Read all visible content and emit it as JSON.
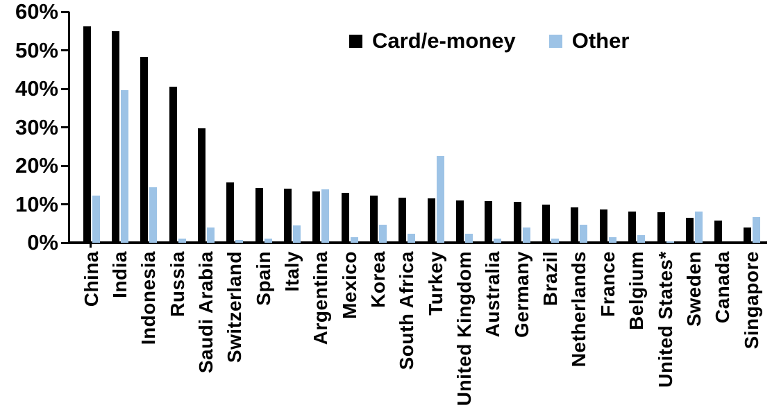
{
  "chart_data": {
    "type": "bar",
    "title": "",
    "xlabel": "",
    "ylabel": "",
    "y_unit": "%",
    "ylim": [
      0,
      60
    ],
    "grid": false,
    "legend_position": "top-center",
    "yticks": [
      {
        "label": "60%",
        "value": 60
      },
      {
        "label": "50%",
        "value": 50
      },
      {
        "label": "40%",
        "value": 40
      },
      {
        "label": "30%",
        "value": 30
      },
      {
        "label": "20%",
        "value": 20
      },
      {
        "label": "10%",
        "value": 10
      },
      {
        "label": "0%",
        "value": 0
      }
    ],
    "categories": [
      "China",
      "India",
      "Indonesia",
      "Russia",
      "Saudi Arabia",
      "Switzerland",
      "Spain",
      "Italy",
      "Argentina",
      "Mexico",
      "Korea",
      "South Africa",
      "Turkey",
      "United Kingdom",
      "Australia",
      "Germany",
      "Brazil",
      "Netherlands",
      "France",
      "Belgium",
      "United States*",
      "Sweden",
      "Canada",
      "Singapore"
    ],
    "series": [
      {
        "name": "Card/e-money",
        "key": "card-e-money",
        "color": "#000000",
        "values": [
          56.2,
          55.0,
          48.2,
          40.5,
          29.8,
          15.6,
          14.2,
          14.1,
          13.4,
          12.9,
          12.2,
          11.8,
          11.6,
          11.0,
          10.8,
          10.6,
          9.9,
          9.2,
          8.6,
          8.1,
          7.9,
          6.4,
          5.8,
          3.9
        ]
      },
      {
        "name": "Other",
        "key": "other",
        "color": "#9DC3E6",
        "values": [
          12.3,
          39.7,
          14.5,
          1.1,
          3.9,
          0.8,
          1.0,
          4.5,
          13.9,
          1.5,
          4.7,
          2.3,
          22.5,
          2.3,
          1.0,
          3.9,
          1.1,
          4.7,
          1.5,
          2.0,
          0.3,
          8.1,
          0,
          6.7
        ]
      }
    ]
  },
  "legend": {
    "items": [
      {
        "label": "Card/e-money",
        "color": "#000000"
      },
      {
        "label": "Other",
        "color": "#9DC3E6"
      }
    ]
  }
}
